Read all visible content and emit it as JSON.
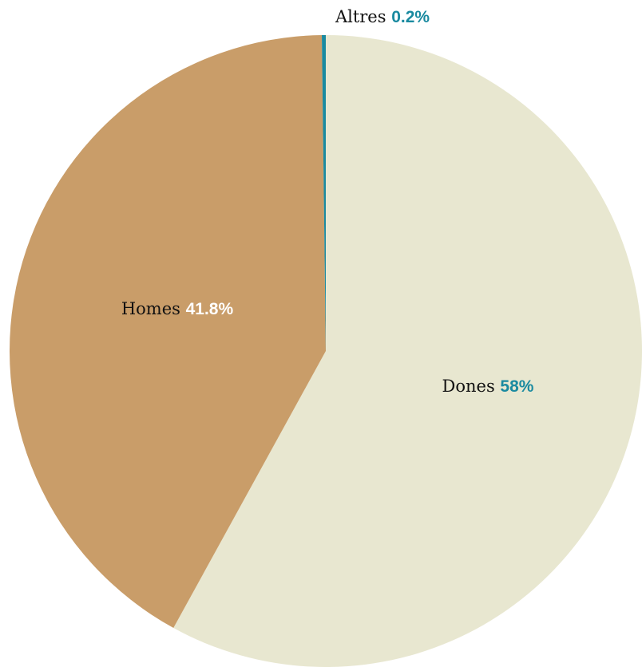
{
  "chart_data": {
    "type": "pie",
    "title": "",
    "slices": [
      {
        "label": "Dones",
        "value": 58,
        "value_label": "58%",
        "color": "#e8e7d0",
        "label_color": "#1a8aa0"
      },
      {
        "label": "Homes",
        "value": 41.8,
        "value_label": "41.8%",
        "color": "#c99d69",
        "label_color": "#ffffff"
      },
      {
        "label": "Altres",
        "value": 0.2,
        "value_label": "0.2%",
        "color": "#1a8aa0",
        "label_color": "#1a8aa0"
      }
    ],
    "start_angle": "12 o'clock",
    "direction": "clockwise",
    "legend": "none",
    "labels": "on-chart"
  }
}
